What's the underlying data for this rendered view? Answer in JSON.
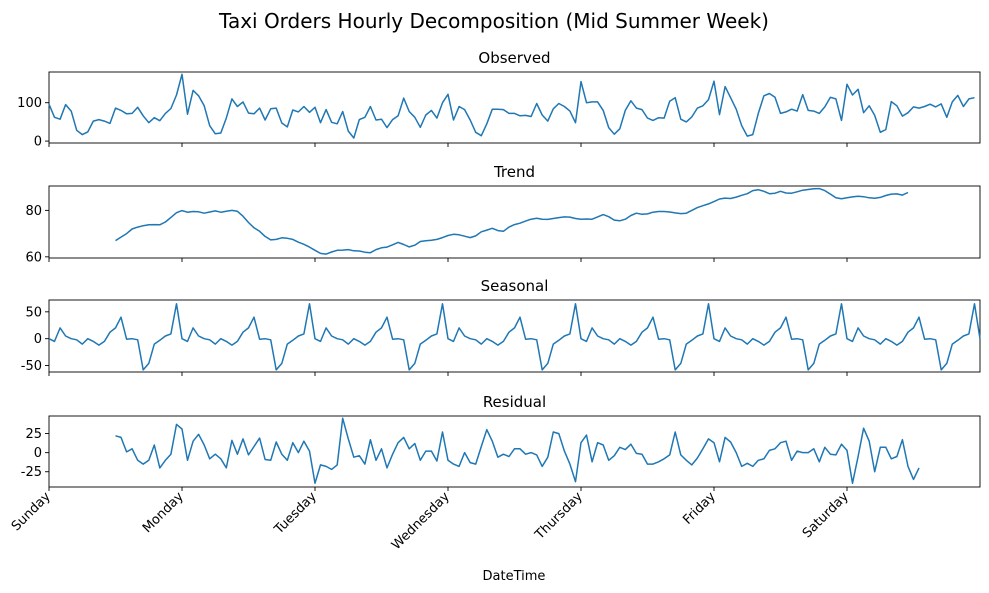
{
  "chart_data": {
    "type": "line",
    "title": "Taxi Orders Hourly Decomposition (Mid Summer Week)",
    "xlabel": "DateTime",
    "x_ticks": [
      "Sunday",
      "Monday",
      "Tuesday",
      "Wednesday",
      "Thursday",
      "Friday",
      "Saturday"
    ],
    "x_unit": "hours since Sunday 00:00",
    "xlim": [
      0,
      168
    ],
    "line_color": "#1f77b4",
    "panels": [
      {
        "name": "observed",
        "title": "Observed",
        "ylim": [
          -5,
          180
        ],
        "yticks": [
          0,
          100
        ],
        "x_start": 0,
        "values": [
          96,
          62,
          57,
          95,
          78,
          28,
          17,
          24,
          52,
          56,
          52,
          46,
          86,
          80,
          71,
          72,
          88,
          66,
          48,
          61,
          53,
          72,
          85,
          120,
          174,
          70,
          132,
          118,
          92,
          40,
          19,
          21,
          60,
          110,
          90,
          102,
          73,
          71,
          86,
          55,
          84,
          86,
          47,
          37,
          81,
          76,
          90,
          75,
          88,
          48,
          82,
          49,
          45,
          77,
          26,
          8,
          56,
          62,
          90,
          55,
          57,
          35,
          56,
          66,
          112,
          77,
          62,
          36,
          68,
          80,
          60,
          100,
          122,
          55,
          90,
          82,
          55,
          23,
          14,
          45,
          83,
          83,
          82,
          72,
          72,
          66,
          67,
          64,
          98,
          68,
          52,
          84,
          98,
          90,
          78,
          48,
          155,
          100,
          102,
          102,
          80,
          35,
          18,
          32,
          80,
          105,
          86,
          82,
          60,
          54,
          61,
          60,
          104,
          113,
          57,
          50,
          63,
          86,
          92,
          108,
          156,
          69,
          142,
          113,
          83,
          40,
          13,
          17,
          72,
          118,
          124,
          114,
          72,
          76,
          83,
          78,
          121,
          80,
          78,
          72,
          89,
          114,
          110,
          54,
          148,
          120,
          135,
          74,
          92,
          67,
          23,
          30,
          103,
          92,
          65,
          74,
          89,
          86,
          90,
          96,
          89,
          97,
          62,
          102,
          119,
          90,
          110,
          113
        ]
      },
      {
        "name": "trend",
        "title": "Trend",
        "ylim": [
          59.5,
          90.5
        ],
        "yticks": [
          60,
          80
        ],
        "x_start": 12,
        "values": [
          67,
          68.5,
          70,
          72,
          72.8,
          73.4,
          73.8,
          73.9,
          73.8,
          75,
          77,
          79,
          79.9,
          79.2,
          79.5,
          79.4,
          78.8,
          79.3,
          79.8,
          79.2,
          79.6,
          80,
          79.6,
          77.5,
          74.8,
          72.5,
          71,
          68.8,
          67.3,
          67.5,
          68.2,
          68,
          67.5,
          66.3,
          65.4,
          64.2,
          62.8,
          61.5,
          61.2,
          62.1,
          62.8,
          62.9,
          63.1,
          62.6,
          62.5,
          62,
          61.8,
          63.1,
          63.9,
          64.2,
          65.2,
          66.2,
          65.3,
          64.3,
          65,
          66.6,
          66.9,
          67.1,
          67.5,
          68.3,
          69.2,
          69.7,
          69.5,
          68.9,
          68.3,
          69,
          70.8,
          71.5,
          72.3,
          71.3,
          71,
          72.8,
          73.9,
          74.5,
          75.4,
          76.2,
          76.6,
          76.2,
          76.1,
          76.5,
          76.9,
          77.2,
          77.1,
          76.5,
          76.2,
          76.3,
          76.2,
          77.2,
          78.2,
          77.3,
          75.8,
          75.5,
          76.2,
          77.8,
          78.8,
          78.3,
          78.5,
          79.2,
          79.5,
          79.5,
          79.3,
          78.9,
          78.6,
          78.8,
          80,
          81.2,
          82,
          82.8,
          83.8,
          84.9,
          85.3,
          85.1,
          85.7,
          86.5,
          87.2,
          88.5,
          88.9,
          88.2,
          87.2,
          87.4,
          88.2,
          87.5,
          87.4,
          88,
          88.7,
          89,
          89.3,
          89.4,
          88.5,
          87,
          85.4,
          85,
          85.4,
          85.8,
          86.1,
          85.9,
          85.4,
          85.2,
          85.6,
          86.4,
          87,
          87.1,
          86.6,
          87.7
        ]
      },
      {
        "name": "seasonal",
        "title": "Seasonal",
        "ylim": [
          -62,
          72
        ],
        "yticks": [
          -50,
          0,
          50
        ],
        "x_start": 0,
        "values": [
          0,
          -5,
          20,
          5,
          0,
          -2,
          -10,
          0,
          -5,
          -12,
          -5,
          12,
          20,
          40,
          -1,
          0,
          -2,
          -58,
          -46,
          -10,
          -3,
          5,
          9,
          65
        ]
      },
      {
        "name": "residual",
        "title": "Residual",
        "ylim": [
          -45,
          48
        ],
        "yticks": [
          -25,
          0,
          25
        ],
        "x_start": 12,
        "values": [
          22,
          20,
          1,
          5,
          -10,
          -15,
          -10,
          10,
          -20,
          -10,
          -2,
          37,
          31,
          -10,
          15,
          24,
          10,
          -8,
          -2,
          -8,
          -20,
          16,
          -2,
          18,
          -3,
          8,
          19,
          -9,
          -10,
          14,
          -2,
          -10,
          13,
          0,
          15,
          2,
          -40,
          -16,
          -18,
          -22,
          -16,
          45,
          18,
          -6,
          -4,
          -15,
          17,
          -10,
          5,
          -20,
          -2,
          13,
          20,
          5,
          12,
          -10,
          2,
          2,
          -11,
          27,
          -10,
          -15,
          -18,
          0,
          -13,
          -15,
          8,
          30,
          15,
          -6,
          -2,
          -5,
          5,
          5,
          -2,
          0,
          -3,
          -18,
          -6,
          27,
          25,
          2,
          -15,
          -38,
          13,
          23,
          -12,
          13,
          10,
          -10,
          -4,
          7,
          4,
          11,
          -1,
          -2,
          -15,
          -15,
          -12,
          -8,
          -3,
          27,
          -3,
          -10,
          -16,
          -7,
          5,
          18,
          13,
          -12,
          20,
          14,
          0,
          -18,
          -14,
          -18,
          -10,
          -8,
          3,
          5,
          13,
          15,
          -10,
          2,
          0,
          0,
          5,
          -12,
          7,
          -2,
          -3,
          11,
          3,
          -40,
          -5,
          32,
          15,
          -25,
          7,
          7,
          -8,
          -5,
          17,
          -18,
          -35,
          -20
        ]
      }
    ]
  }
}
